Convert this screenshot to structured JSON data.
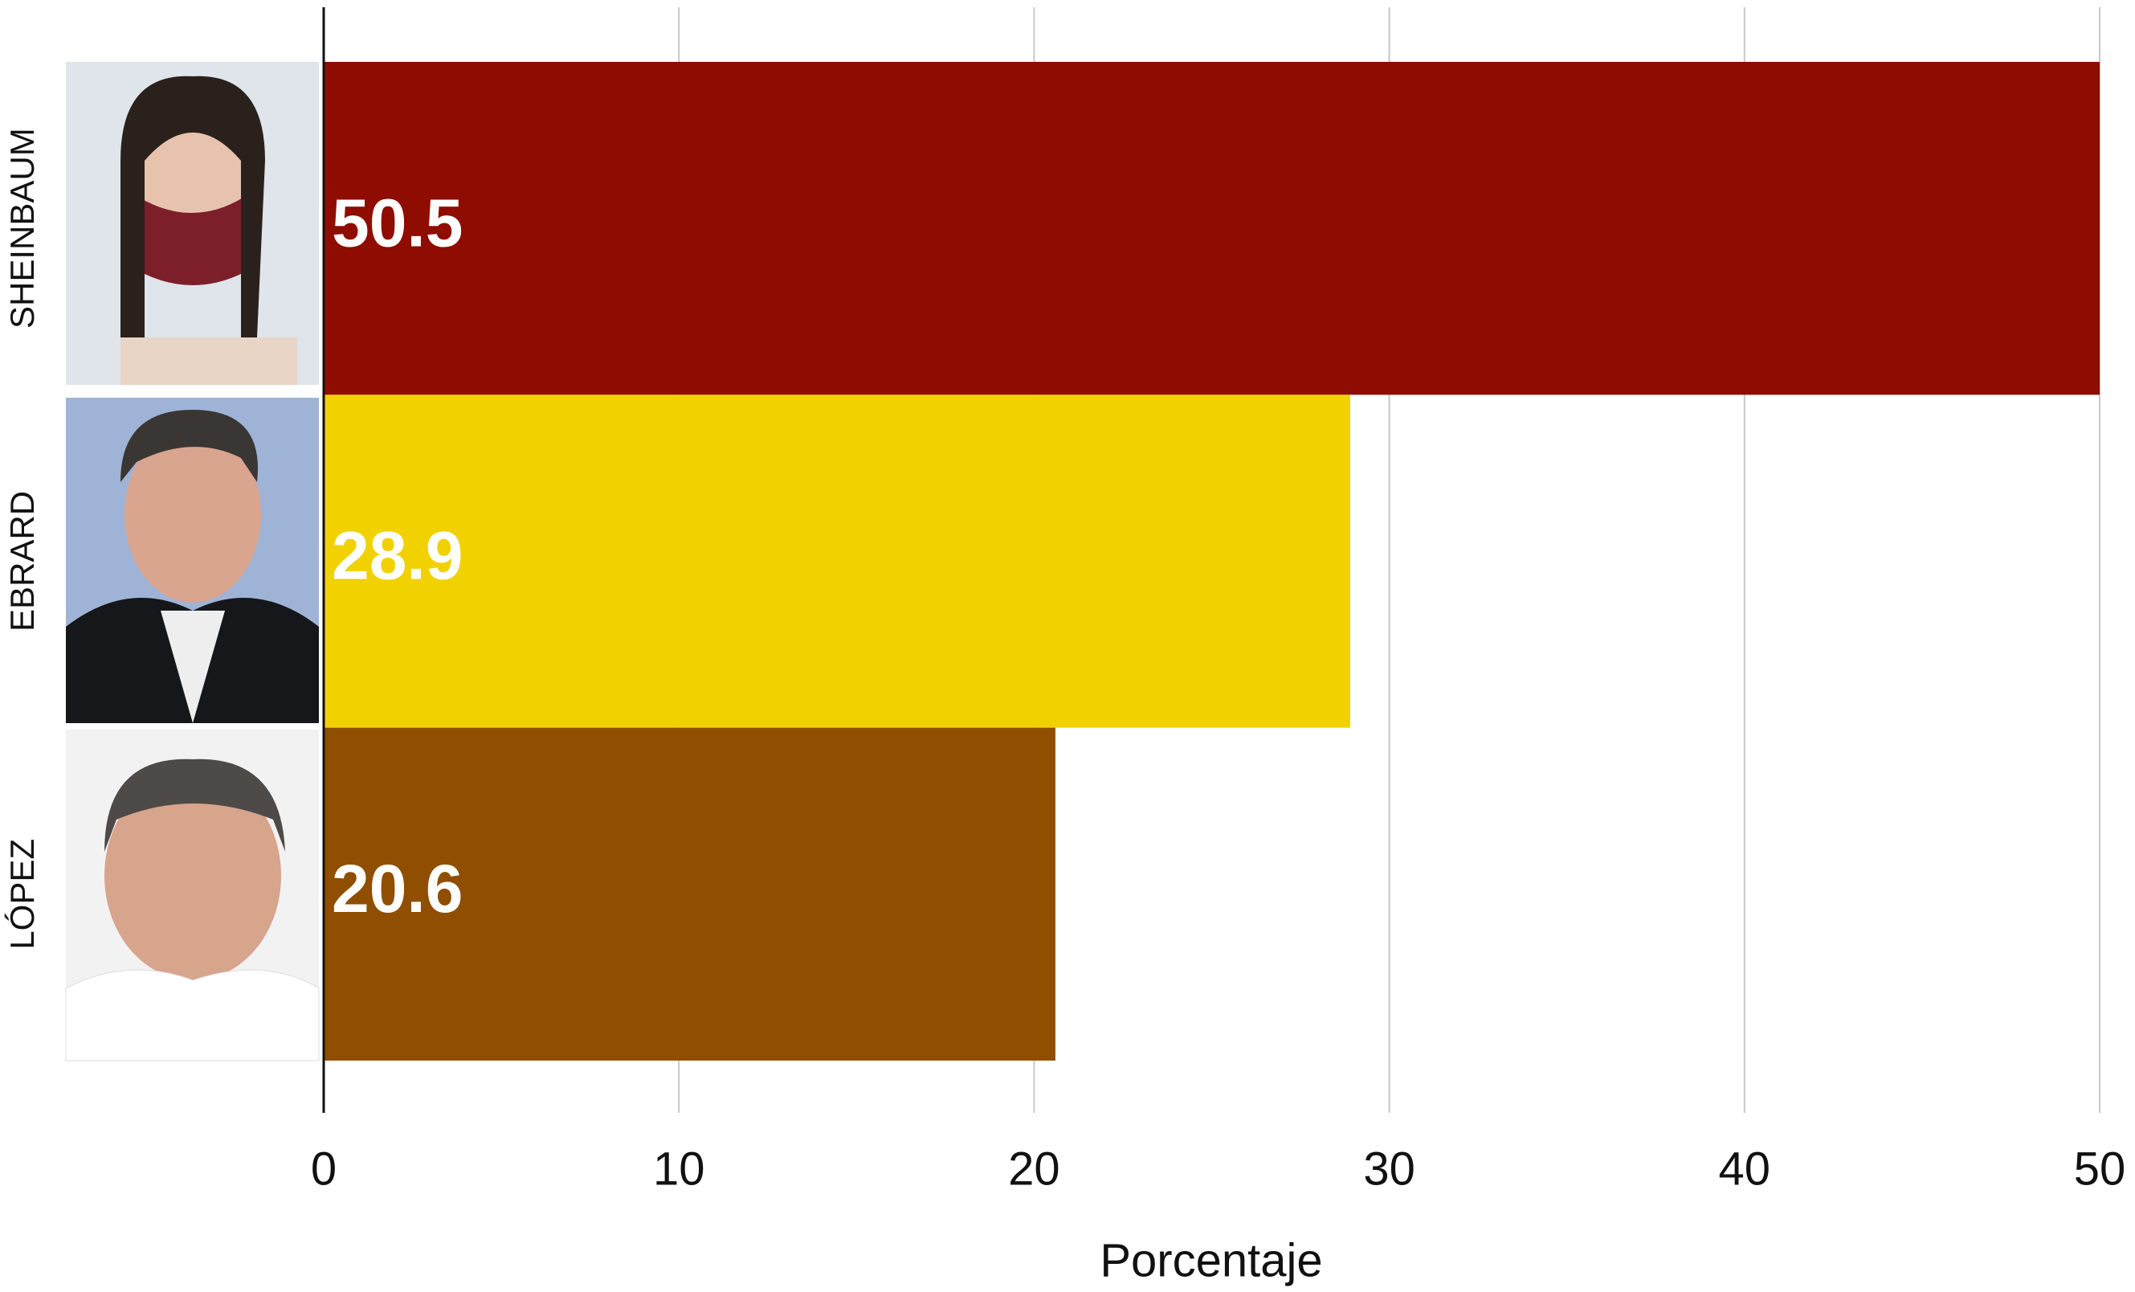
{
  "chart_data": {
    "type": "bar",
    "orientation": "horizontal",
    "categories": [
      "SHEINBAUM",
      "EBRARD",
      "LÓPEZ"
    ],
    "values": [
      50.5,
      28.9,
      20.6
    ],
    "colors": [
      "#8f0c00",
      "#f2d100",
      "#8f4e00"
    ],
    "xlabel": "Porcentaje",
    "xlim": [
      0,
      50
    ],
    "xticks": [
      0,
      10,
      20,
      30,
      40,
      50
    ],
    "grid": true
  }
}
